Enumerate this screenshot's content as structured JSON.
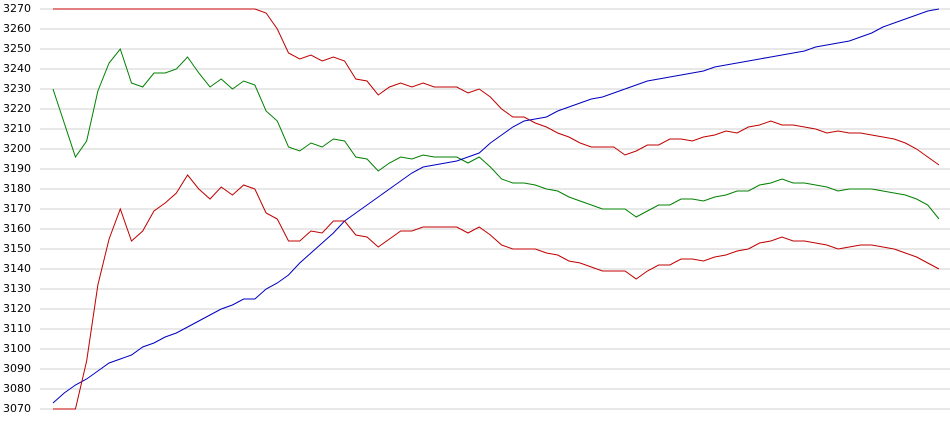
{
  "chart_data": {
    "type": "line",
    "ylim": [
      3070,
      3270
    ],
    "yticks": [
      3070,
      3080,
      3090,
      3100,
      3110,
      3120,
      3130,
      3140,
      3150,
      3160,
      3170,
      3180,
      3190,
      3200,
      3210,
      3220,
      3230,
      3240,
      3250,
      3260,
      3270
    ],
    "grid": true,
    "series": [
      {
        "color": "#c00000",
        "values": [
          3270,
          3270,
          3270,
          3270,
          3270,
          3270,
          3270,
          3270,
          3270,
          3270,
          3270,
          3270,
          3270,
          3270,
          3270,
          3270,
          3270,
          3270,
          3270,
          3268,
          3260,
          3248,
          3245,
          3247,
          3244,
          3246,
          3244,
          3235,
          3234,
          3227,
          3231,
          3233,
          3231,
          3233,
          3231,
          3231,
          3231,
          3228,
          3230,
          3226,
          3220,
          3216,
          3216,
          3213,
          3211,
          3208,
          3206,
          3203,
          3201,
          3201,
          3201,
          3197,
          3199,
          3202,
          3202,
          3205,
          3205,
          3204,
          3206,
          3207,
          3209,
          3208,
          3211,
          3212,
          3214,
          3212,
          3212,
          3211,
          3210,
          3208,
          3209,
          3208,
          3208,
          3207,
          3206,
          3205,
          3203,
          3200,
          3196,
          3192
        ]
      },
      {
        "color": "#008000",
        "values": [
          3230,
          3213,
          3196,
          3204,
          3229,
          3243,
          3250,
          3233,
          3231,
          3238,
          3238,
          3240,
          3246,
          3238,
          3231,
          3235,
          3230,
          3234,
          3232,
          3219,
          3214,
          3201,
          3199,
          3203,
          3201,
          3205,
          3204,
          3196,
          3195,
          3189,
          3193,
          3196,
          3195,
          3197,
          3196,
          3196,
          3196,
          3193,
          3196,
          3191,
          3185,
          3183,
          3183,
          3182,
          3180,
          3179,
          3176,
          3174,
          3172,
          3170,
          3170,
          3170,
          3166,
          3169,
          3172,
          3172,
          3175,
          3175,
          3174,
          3176,
          3177,
          3179,
          3179,
          3182,
          3183,
          3185,
          3183,
          3183,
          3182,
          3181,
          3179,
          3180,
          3180,
          3180,
          3179,
          3178,
          3177,
          3175,
          3172,
          3165
        ]
      },
      {
        "color": "#0000c0",
        "values": [
          3073,
          3078,
          3082,
          3085,
          3089,
          3093,
          3095,
          3097,
          3101,
          3103,
          3106,
          3108,
          3111,
          3114,
          3117,
          3120,
          3122,
          3125,
          3125,
          3130,
          3133,
          3137,
          3143,
          3148,
          3153,
          3158,
          3164,
          3168,
          3172,
          3176,
          3180,
          3184,
          3188,
          3191,
          3192,
          3193,
          3194,
          3196,
          3198,
          3203,
          3207,
          3211,
          3214,
          3215,
          3216,
          3219,
          3221,
          3223,
          3225,
          3226,
          3228,
          3230,
          3232,
          3234,
          3235,
          3236,
          3237,
          3238,
          3239,
          3241,
          3242,
          3243,
          3244,
          3245,
          3246,
          3247,
          3248,
          3249,
          3251,
          3252,
          3253,
          3254,
          3256,
          3258,
          3261,
          3263,
          3265,
          3267,
          3269,
          3270
        ]
      },
      {
        "color": "#c00000",
        "values": [
          3070,
          3070,
          3070,
          3094,
          3132,
          3155,
          3170,
          3154,
          3159,
          3169,
          3173,
          3178,
          3187,
          3180,
          3175,
          3181,
          3177,
          3182,
          3180,
          3168,
          3165,
          3154,
          3154,
          3159,
          3158,
          3164,
          3164,
          3157,
          3156,
          3151,
          3155,
          3159,
          3159,
          3161,
          3161,
          3161,
          3161,
          3158,
          3161,
          3157,
          3152,
          3150,
          3150,
          3150,
          3148,
          3147,
          3144,
          3143,
          3141,
          3139,
          3139,
          3139,
          3135,
          3139,
          3142,
          3142,
          3145,
          3145,
          3144,
          3146,
          3147,
          3149,
          3150,
          3153,
          3154,
          3156,
          3154,
          3154,
          3153,
          3152,
          3150,
          3151,
          3152,
          3152,
          3151,
          3150,
          3148,
          3146,
          3143,
          3140
        ]
      }
    ]
  }
}
